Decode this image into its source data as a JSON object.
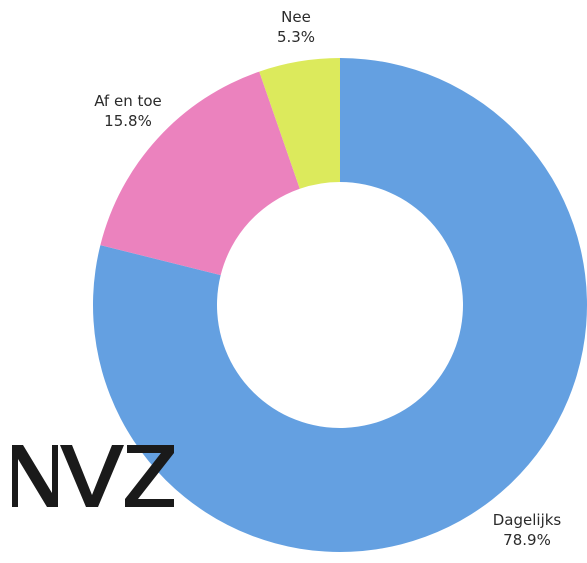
{
  "chart_data": {
    "type": "pie",
    "variant": "donut",
    "title": "",
    "series": [
      {
        "labels": [
          "Dagelijks",
          "Af en toe",
          "Nee"
        ],
        "values": [
          78.9,
          15.8,
          5.3
        ],
        "value_labels": [
          "78.9%",
          "15.8%",
          "5.3%"
        ],
        "colors": [
          "#64a0e1",
          "#eb82be",
          "#dcea5c"
        ]
      }
    ],
    "legend": "none",
    "start_angle_deg": 0,
    "direction": "clockwise"
  },
  "watermark": {
    "text": "NVZ",
    "color": "#1a1a1a"
  }
}
